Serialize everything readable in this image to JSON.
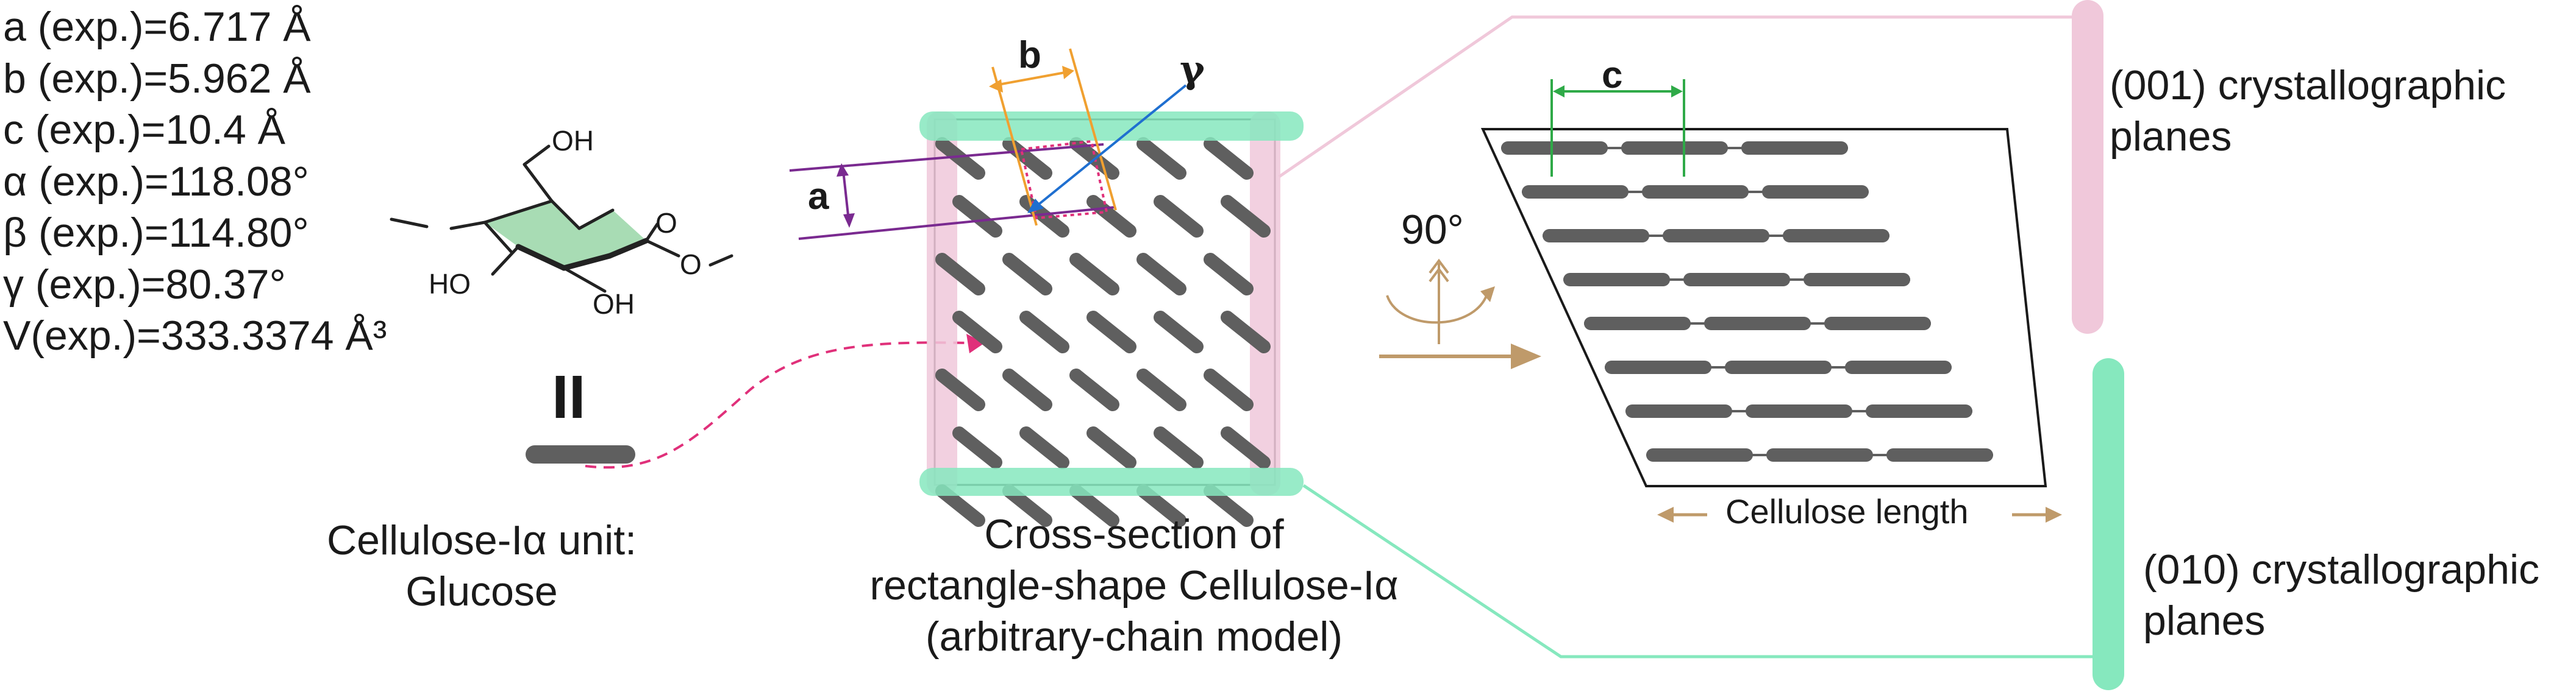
{
  "parameters": [
    "a (exp.)=6.717 Å",
    "b (exp.)=5.962 Å",
    "c (exp.)=10.4 Å",
    "α (exp.)=118.08°",
    "β (exp.)=114.80°",
    "γ (exp.)=80.37°",
    "V(exp.)=333.3374 Å³"
  ],
  "molecule": {
    "roman_label": "II",
    "oh_top": "OH",
    "ho_left": "HO",
    "oh_bottom": "OH",
    "ring_oxygen": "O",
    "glycosidic_oxygen": "O"
  },
  "unit_caption": [
    "Cellulose-Iα unit:",
    "Glucose"
  ],
  "cross_section_caption": [
    "Cross-section of",
    "rectangle-shape Cellulose-Iα",
    "(arbitrary-chain model)"
  ],
  "lattice_labels": {
    "a": "a",
    "b": "b",
    "c": "c",
    "gamma": "γ"
  },
  "rotation_label": "90°",
  "length_label": "Cellulose length",
  "planes": {
    "p001": [
      "(001) crystallographic",
      "planes"
    ],
    "p010": [
      "(010) crystallographic",
      "planes"
    ]
  },
  "colors": {
    "chain": "#5f5f5f",
    "pink": "#f0c8da",
    "green": "#86e8be",
    "orange": "#f0a030",
    "purple": "#7a2a90",
    "blue": "#1f6fd0",
    "magenta": "#e0307a",
    "bronze": "#bf9a6a",
    "green_dark": "#2faa48"
  }
}
